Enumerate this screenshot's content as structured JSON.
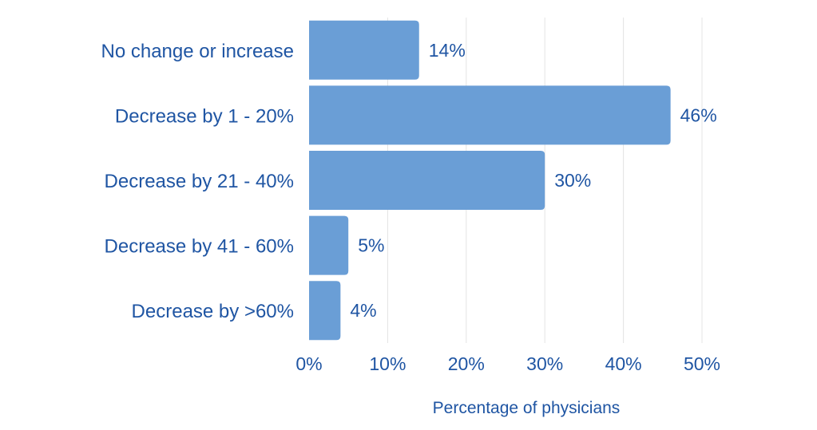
{
  "chart_data": {
    "type": "bar",
    "orientation": "horizontal",
    "categories": [
      "No change or increase",
      "Decrease by 1 - 20%",
      "Decrease by 21 - 40%",
      "Decrease by 41 - 60%",
      "Decrease by >60%"
    ],
    "values": [
      14,
      46,
      30,
      5,
      4
    ],
    "data_labels": [
      "14%",
      "46%",
      "30%",
      "5%",
      "4%"
    ],
    "xlabel": "Percentage of physicians",
    "ylabel": "",
    "xlim": [
      0,
      50
    ],
    "x_ticks": [
      0,
      10,
      20,
      30,
      40,
      50
    ],
    "x_tick_labels": [
      "0%",
      "10%",
      "20%",
      "30%",
      "40%",
      "50%"
    ],
    "grid": "vertical",
    "bar_color": "#6a9ed6",
    "text_color": "#1f55a3",
    "grid_color": "#e4e4e4"
  }
}
